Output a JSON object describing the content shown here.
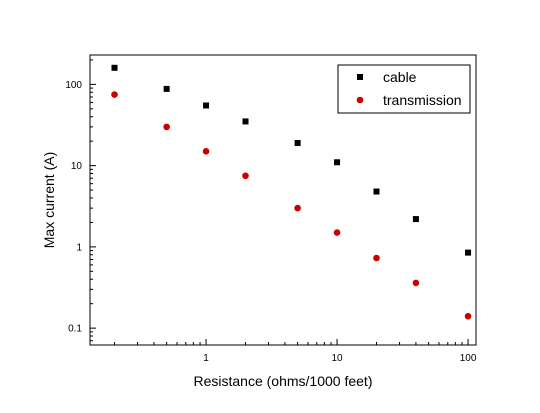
{
  "chart_data": {
    "type": "scatter",
    "xlabel": "Resistance (ohms/1000 feet)",
    "ylabel": "Max current (A)",
    "xscale": "log",
    "yscale": "log",
    "xlim": [
      0.13,
      115
    ],
    "ylim": [
      0.062,
      230
    ],
    "xticks": [
      {
        "value": 1,
        "label": "1"
      },
      {
        "value": 10,
        "label": "10"
      },
      {
        "value": 100,
        "label": "100"
      }
    ],
    "yticks": [
      {
        "value": 0.1,
        "label": "0.1"
      },
      {
        "value": 1,
        "label": "1"
      },
      {
        "value": 10,
        "label": "10"
      },
      {
        "value": 100,
        "label": "100"
      }
    ],
    "grid": false,
    "legend_position": "top-right",
    "series": [
      {
        "name": "cable",
        "marker": "square",
        "color": "#000000",
        "x": [
          0.2,
          0.5,
          1,
          2,
          5,
          10,
          20,
          40,
          100
        ],
        "y": [
          160,
          88,
          55,
          35,
          19,
          11,
          4.8,
          2.2,
          0.85
        ]
      },
      {
        "name": "transmission",
        "marker": "circle",
        "color": "#cc0000",
        "x": [
          0.2,
          0.5,
          1,
          2,
          5,
          10,
          20,
          40,
          100
        ],
        "y": [
          75,
          30,
          15,
          7.5,
          3,
          1.5,
          0.73,
          0.36,
          0.14
        ]
      }
    ]
  }
}
